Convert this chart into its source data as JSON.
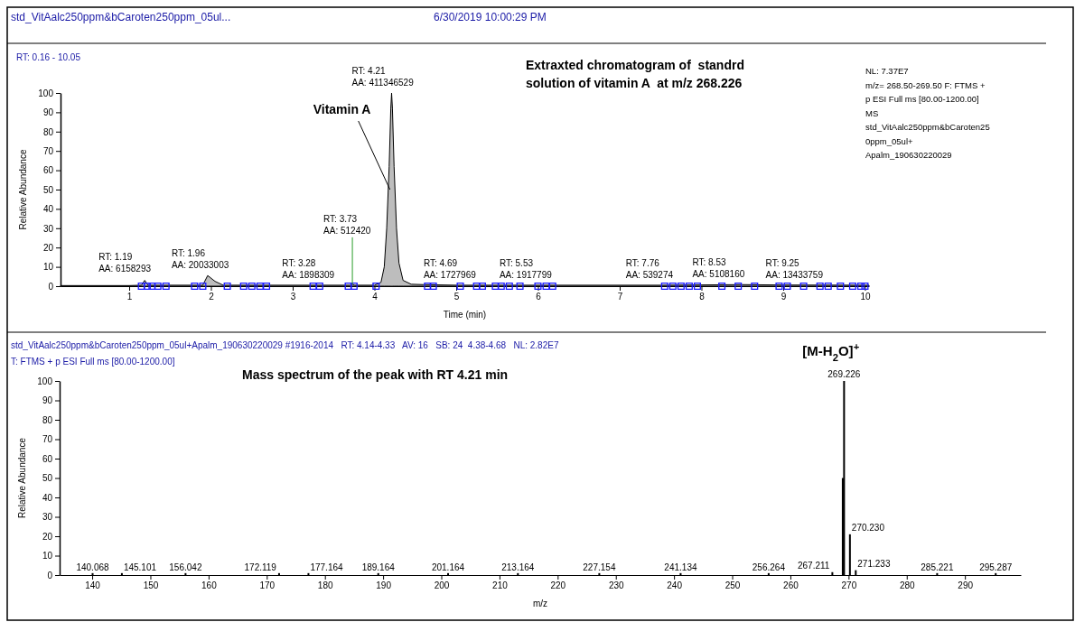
{
  "chart_data": [
    {
      "type": "area",
      "title": "Extraxted chromatogram of  standrd solution of vitamin A  at m/z 268.226",
      "xlabel": "Time (min)",
      "ylabel": "Relative Abundance",
      "xlim": [
        0.16,
        10.05
      ],
      "ylim": [
        0,
        100
      ],
      "xticks": [
        1,
        2,
        3,
        4,
        5,
        6,
        7,
        8,
        9,
        10
      ],
      "yticks": [
        0,
        10,
        20,
        30,
        40,
        50,
        60,
        70,
        80,
        90,
        100
      ],
      "series": [
        {
          "color": "#bdbdbd",
          "x": [
            0.16,
            1.0,
            1.15,
            1.19,
            1.23,
            1.9,
            1.96,
            2.05,
            2.15,
            3.7,
            3.73,
            3.76,
            4.0,
            4.08,
            4.12,
            4.15,
            4.18,
            4.2,
            4.21,
            4.22,
            4.24,
            4.27,
            4.3,
            4.35,
            4.45,
            4.6,
            5.0,
            7.5,
            8.5,
            9.0,
            10.05
          ],
          "values": [
            0.3,
            0.3,
            0.5,
            3,
            0.5,
            0.5,
            5.5,
            2.5,
            0.5,
            0.5,
            1,
            0.5,
            0.5,
            2,
            10,
            30,
            62,
            92,
            100,
            92,
            62,
            30,
            12,
            3,
            1,
            0.8,
            0.5,
            0.5,
            0.8,
            0.6,
            0.5
          ]
        },
        {
          "type": "scatter",
          "marker": "square",
          "color": "#1a1aff",
          "x": [
            1.15,
            1.22,
            1.28,
            1.35,
            1.45,
            1.8,
            1.9,
            2.2,
            2.4,
            2.5,
            2.6,
            2.68,
            3.25,
            3.33,
            3.68,
            3.75,
            4.02,
            4.65,
            4.72,
            5.05,
            5.25,
            5.32,
            5.48,
            5.55,
            5.65,
            5.78,
            6.0,
            6.1,
            6.18,
            7.55,
            7.65,
            7.75,
            7.85,
            7.95,
            8.25,
            8.45,
            8.65,
            8.95,
            9.05,
            9.25,
            9.45,
            9.55,
            9.7,
            9.85,
            9.95,
            10.0
          ],
          "values": [
            0,
            0,
            0,
            0,
            0,
            0,
            0,
            0,
            0,
            0,
            0,
            0,
            0,
            0,
            0,
            0,
            0,
            0,
            0,
            0,
            0,
            0,
            0,
            0,
            0,
            0,
            0,
            0,
            0,
            0,
            0,
            0,
            0,
            0,
            0,
            0,
            0,
            0,
            0,
            0,
            0,
            0,
            0,
            0,
            0,
            0
          ]
        }
      ],
      "annotations": [
        "std_VitAalc250ppm&bCaroten250ppm_05ul...",
        "6/30/2019 10:00:29 PM",
        "RT: 0.16 - 10.05",
        "NL: 7.37E7\nm/z= 268.50-269.50 F: FTMS +\np ESI Full ms [80.00-1200.00]\nMS\nstd_VitAalc250ppm&bCaroten25\n0ppm_05ul+\nApalm_190630220029",
        {
          "text": "RT: 1.19\nAA: 6158293",
          "x": 1.19,
          "y": 3
        },
        {
          "text": "RT: 1.96\nAA: 20033003",
          "x": 1.96,
          "y": 5.5
        },
        {
          "text": "RT: 3.28\nAA: 1898309",
          "x": 3.28,
          "y": 0.5
        },
        {
          "text": "RT: 3.73\nAA: 512420",
          "x": 3.73,
          "y": 1
        },
        {
          "text": "RT: 4.21\nAA: 411346529",
          "x": 4.21,
          "y": 100
        },
        {
          "text": "RT: 4.69\nAA: 1727969",
          "x": 4.69,
          "y": 0.5
        },
        {
          "text": "RT: 5.53\nAA: 1917799",
          "x": 5.53,
          "y": 0.5
        },
        {
          "text": "RT: 7.76\nAA: 539274",
          "x": 7.76,
          "y": 0.5
        },
        {
          "text": "RT: 8.53\nAA: 5108160",
          "x": 8.53,
          "y": 0.8
        },
        {
          "text": "RT: 9.25\nAA: 13433759",
          "x": 9.25,
          "y": 0.6
        },
        {
          "text": "Vitamin A",
          "x": 4.19,
          "y": 50
        }
      ]
    },
    {
      "type": "bar",
      "title": "Mass spectrum of the peak with RT 4.21 min",
      "xlabel": "m/z",
      "ylabel": "Relative Abundance",
      "xlim": [
        134.4,
        299.6
      ],
      "ylim": [
        0,
        100
      ],
      "xticks": [
        140,
        150,
        160,
        170,
        180,
        190,
        200,
        210,
        220,
        230,
        240,
        250,
        260,
        270,
        280,
        290
      ],
      "yticks": [
        0,
        10,
        20,
        30,
        40,
        50,
        60,
        70,
        80,
        90,
        100
      ],
      "series": [
        {
          "color": "#000000",
          "x": [
            140.068,
            145.101,
            156.042,
            172.119,
            177.164,
            189.164,
            201.164,
            213.164,
            227.154,
            241.134,
            256.264,
            267.211,
            269.0,
            269.226,
            270.23,
            271.233,
            285.221,
            295.287
          ],
          "values": [
            1,
            1,
            1,
            1,
            1,
            1,
            1,
            1,
            1,
            1,
            1,
            1.5,
            50,
            100,
            21,
            2.5,
            1,
            1
          ]
        }
      ],
      "annotations": [
        "std_VitAalc250ppm&bCaroten250ppm_05ul+Apalm_190630220029 #1916-2014   RT: 4.14-4.33   AV: 16   SB: 24  4.38-4.68   NL: 2.82E7",
        "T: FTMS + p ESI Full ms [80.00-1200.00]",
        {
          "text": "[M-H$_{2}$O]$^{+}$",
          "x": 269.226,
          "y": 100
        },
        {
          "text": "140.068",
          "x": 140.068,
          "y": 0.3
        },
        {
          "text": "145.101",
          "x": 145.101,
          "y": 0.3
        },
        {
          "text": "156.042",
          "x": 156.042,
          "y": 0.3
        },
        {
          "text": "172.119",
          "x": 172.119,
          "y": 0.3
        },
        {
          "text": "177.164",
          "x": 177.164,
          "y": 0.3
        },
        {
          "text": "189.164",
          "x": 189.164,
          "y": 0.3
        },
        {
          "text": "201.164",
          "x": 201.164,
          "y": 0.3
        },
        {
          "text": "213.164",
          "x": 213.164,
          "y": 0.3
        },
        {
          "text": "227.154",
          "x": 227.154,
          "y": 0.3
        },
        {
          "text": "241.134",
          "x": 241.134,
          "y": 0.3
        },
        {
          "text": "256.264",
          "x": 256.264,
          "y": 0.3
        },
        {
          "text": "267.211",
          "x": 267.211,
          "y": 1.5
        },
        {
          "text": "269.226",
          "x": 269.226,
          "y": 100
        },
        {
          "text": "270.230",
          "x": 270.23,
          "y": 21
        },
        {
          "text": "271.233",
          "x": 271.233,
          "y": 2.5
        },
        {
          "text": "285.221",
          "x": 285.221,
          "y": 0.3
        },
        {
          "text": "295.287",
          "x": 295.287,
          "y": 0.3
        }
      ]
    }
  ]
}
